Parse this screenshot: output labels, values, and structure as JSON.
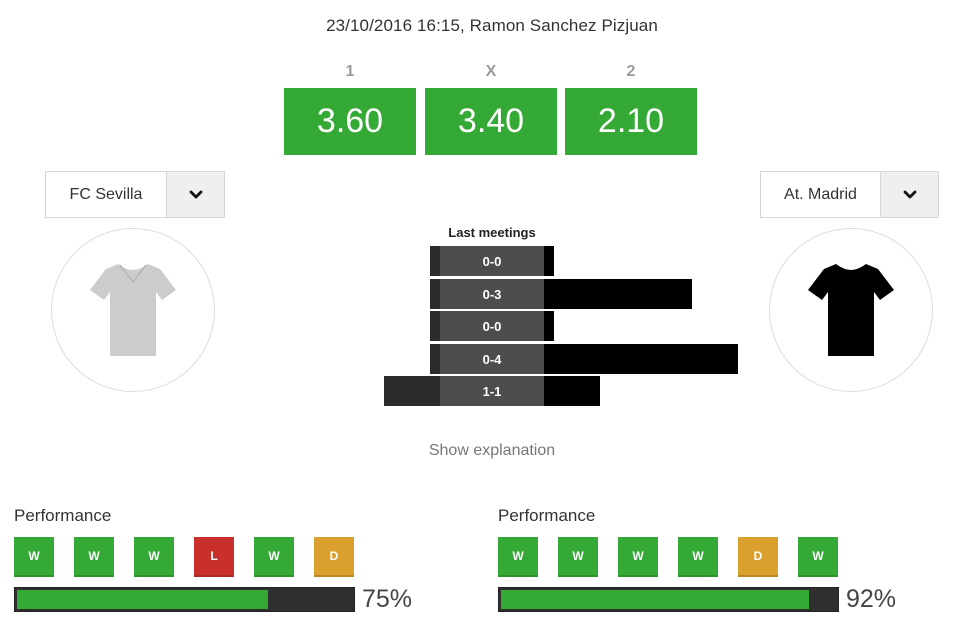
{
  "match": {
    "info": "23/10/2016 16:15, Ramon Sanchez Pizjuan"
  },
  "odds": [
    {
      "label": "1",
      "value": "3.60"
    },
    {
      "label": "X",
      "value": "3.40"
    },
    {
      "label": "2",
      "value": "2.10"
    }
  ],
  "home": {
    "name": "FC Sevilla",
    "shirt_color": "#cccccc"
  },
  "away": {
    "name": "At. Madrid",
    "shirt_color": "#000000"
  },
  "meetings": {
    "title": "Last meetings",
    "rows": [
      {
        "score": "0-0",
        "home_goals": 0,
        "away_goals": 0
      },
      {
        "score": "0-3",
        "home_goals": 0,
        "away_goals": 3
      },
      {
        "score": "0-0",
        "home_goals": 0,
        "away_goals": 0
      },
      {
        "score": "0-4",
        "home_goals": 0,
        "away_goals": 4
      },
      {
        "score": "1-1",
        "home_goals": 1,
        "away_goals": 1
      }
    ]
  },
  "explanation_link": "Show explanation",
  "performance": {
    "home": {
      "title": "Performance",
      "results": [
        "W",
        "W",
        "W",
        "L",
        "W",
        "D"
      ],
      "percent_label": "75%",
      "percent": 75
    },
    "away": {
      "title": "Performance",
      "results": [
        "W",
        "W",
        "W",
        "W",
        "D",
        "W"
      ],
      "percent_label": "92%",
      "percent": 92
    }
  },
  "colors": {
    "accent_green": "#35a935",
    "loss_red": "#c9302c",
    "draw_amber": "#d9a02e"
  }
}
